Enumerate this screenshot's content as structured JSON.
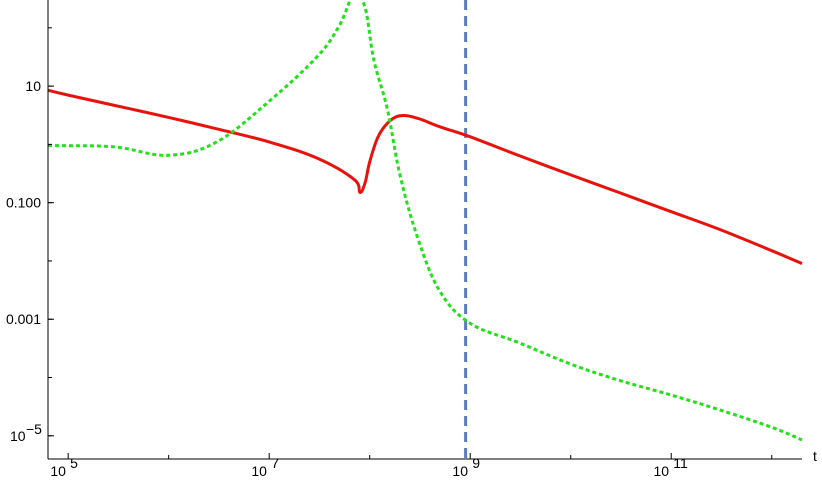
{
  "chart_data": {
    "type": "line",
    "title": "",
    "xlabel": "t",
    "ylabel": "",
    "x_scale": "log",
    "y_scale": "log",
    "xlim": [
      63000,
      2000000000000.0
    ],
    "ylim": [
      4e-06,
      300
    ],
    "grid": false,
    "legend": "none",
    "x_ticks": [
      {
        "value": 100000.0,
        "label": "10",
        "exp": "5"
      },
      {
        "value": 10000000.0,
        "label": "10",
        "exp": "7"
      },
      {
        "value": 1000000000.0,
        "label": "10",
        "exp": "9"
      },
      {
        "value": 100000000000.0,
        "label": "10",
        "exp": "11"
      }
    ],
    "y_ticks": [
      {
        "value": 10,
        "label": "10",
        "exp": ""
      },
      {
        "value": 0.1,
        "label": "0.100",
        "exp": ""
      },
      {
        "value": 0.001,
        "label": "0.001",
        "exp": ""
      },
      {
        "value": 1e-05,
        "label": "10",
        "exp": "−5"
      }
    ],
    "series": [
      {
        "color": "#e8120c",
        "style": "solid",
        "x": [
          63000,
          100000,
          300000,
          1000000,
          3000000,
          10000000,
          30000000,
          70000000,
          80000000,
          90000000,
          100000000,
          120000000,
          150000000,
          200000000,
          300000000,
          500000000,
          1000000000,
          3000000000,
          10000000000,
          30000000000,
          100000000000,
          300000000000,
          1000000000000,
          2000000000000
        ],
        "y": [
          8.5,
          7,
          4.6,
          2.9,
          1.85,
          1.1,
          0.58,
          0.25,
          0.15,
          0.22,
          0.5,
          1.3,
          2.3,
          3.1,
          2.8,
          2.0,
          1.35,
          0.65,
          0.3,
          0.15,
          0.07,
          0.035,
          0.015,
          0.009
        ]
      },
      {
        "color": "#22e11a",
        "style": "dotted",
        "x": [
          63000,
          100000,
          300000,
          1000000,
          3000000,
          10000000,
          30000000,
          50000000,
          70000000,
          90000000,
          110000000,
          150000000,
          200000000,
          300000000,
          500000000,
          1000000000,
          3000000000,
          10000000000,
          30000000000,
          100000000000,
          300000000000,
          1000000000000,
          2000000000000
        ],
        "y": [
          0.95,
          0.95,
          0.9,
          0.65,
          1.1,
          5.5,
          32,
          110,
          380,
          220,
          28,
          4.0,
          0.3,
          0.025,
          0.003,
          0.00085,
          0.0004,
          0.00017,
          9e-05,
          5e-05,
          2.8e-05,
          1.4e-05,
          8.5e-06
        ]
      }
    ],
    "reference_lines": [
      {
        "orientation": "vertical",
        "x": 900000000,
        "color": "#5b7cbf",
        "style": "dashed"
      }
    ]
  }
}
